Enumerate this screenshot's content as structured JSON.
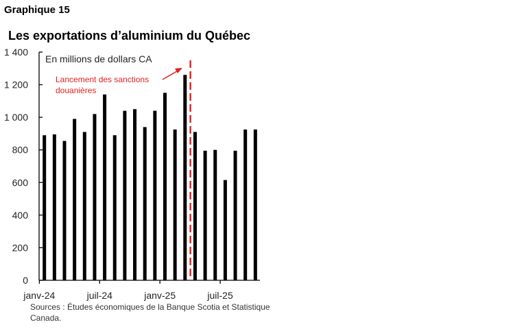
{
  "header": {
    "graph_number": "Graphique 15",
    "title": "Les exportations d’aluminium du Québec"
  },
  "source": "Sources : Études économiques de la Banque Scotia et Statistique Canada.",
  "colors": {
    "bars": "#000000",
    "annotation": "#e02020"
  },
  "chart_data": {
    "type": "bar",
    "unit_label": "En millions de dollars CA",
    "ylim": [
      0,
      1400
    ],
    "yticks": [
      0,
      200,
      400,
      600,
      800,
      1000,
      1200,
      1400
    ],
    "ytick_labels": [
      "0",
      "200",
      "400",
      "600",
      "800",
      "1 000",
      "1 200",
      "1 400"
    ],
    "categories": [
      "2024-01",
      "2024-02",
      "2024-03",
      "2024-04",
      "2024-05",
      "2024-06",
      "2024-07",
      "2024-08",
      "2024-09",
      "2024-10",
      "2024-11",
      "2024-12",
      "2025-01",
      "2025-02",
      "2025-03",
      "2025-04",
      "2025-05",
      "2025-06",
      "2025-07",
      "2025-08",
      "2025-09",
      "2025-10"
    ],
    "values": [
      890,
      895,
      855,
      990,
      910,
      1020,
      1140,
      890,
      1040,
      1050,
      940,
      1040,
      1150,
      925,
      1260,
      910,
      795,
      800,
      615,
      795,
      925,
      925
    ],
    "x_tick_labels": [
      {
        "category": "2024-01",
        "label": "janv-24"
      },
      {
        "category": "2024-07",
        "label": "juil-24"
      },
      {
        "category": "2025-01",
        "label": "janv-25"
      },
      {
        "category": "2025-07",
        "label": "juil-25"
      }
    ],
    "annotation": {
      "text_lines": [
        "Lancement des sanctions",
        "douanières"
      ],
      "marker_after_category": "2025-03"
    },
    "grid": false,
    "legend": "none"
  }
}
